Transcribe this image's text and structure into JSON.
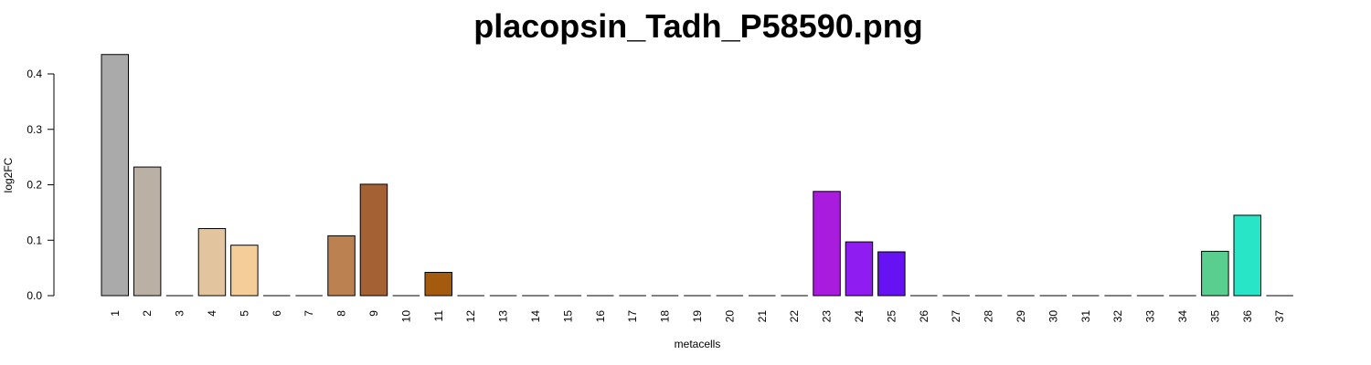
{
  "chart_data": {
    "type": "bar",
    "title": "placopsin_Tadh_P58590.png",
    "xlabel": "metacells",
    "ylabel": "log2FC",
    "ylim": [
      0,
      0.4
    ],
    "yticks": [
      "0.0",
      "0.1",
      "0.2",
      "0.3",
      "0.4"
    ],
    "categories": [
      "1",
      "2",
      "3",
      "4",
      "5",
      "6",
      "7",
      "8",
      "9",
      "10",
      "11",
      "12",
      "13",
      "14",
      "15",
      "16",
      "17",
      "18",
      "19",
      "20",
      "21",
      "22",
      "23",
      "24",
      "25",
      "26",
      "27",
      "28",
      "29",
      "30",
      "31",
      "32",
      "33",
      "34",
      "35",
      "36",
      "37"
    ],
    "values": [
      0.435,
      0.232,
      0,
      0.121,
      0.091,
      0,
      0,
      0.108,
      0.201,
      0,
      0.042,
      0,
      0,
      0,
      0,
      0,
      0,
      0,
      0,
      0,
      0,
      0,
      0.188,
      0.097,
      0.079,
      0,
      0,
      0,
      0,
      0,
      0,
      0,
      0,
      0,
      0.08,
      0.145,
      0
    ],
    "colors": [
      "#aaaaaa",
      "#bab1a4",
      "#d9c6b0",
      "#e2c59e",
      "#f5cd99",
      "#b5966f",
      "#a87a52",
      "#bc8150",
      "#a46133",
      "#9d5a2a",
      "#a45b0f",
      "#9e4f0b",
      "#8d4910",
      "#7b4a30",
      "#6e4a3a",
      "#704c4c",
      "#7d5d6b",
      "#8e6f8c",
      "#9a7aa5",
      "#a37bb8",
      "#ab6fcc",
      "#b14cde",
      "#aa1cdd",
      "#8f1cf0",
      "#6712f2",
      "#5b2ef0",
      "#4a54ee",
      "#3f7bea",
      "#3a9ae5",
      "#38b3d8",
      "#36c4c4",
      "#3acbb0",
      "#45cf9e",
      "#50cf95",
      "#5ace8f",
      "#29e5c7",
      "#1fd9d2"
    ],
    "grid": false,
    "legend": "none"
  }
}
